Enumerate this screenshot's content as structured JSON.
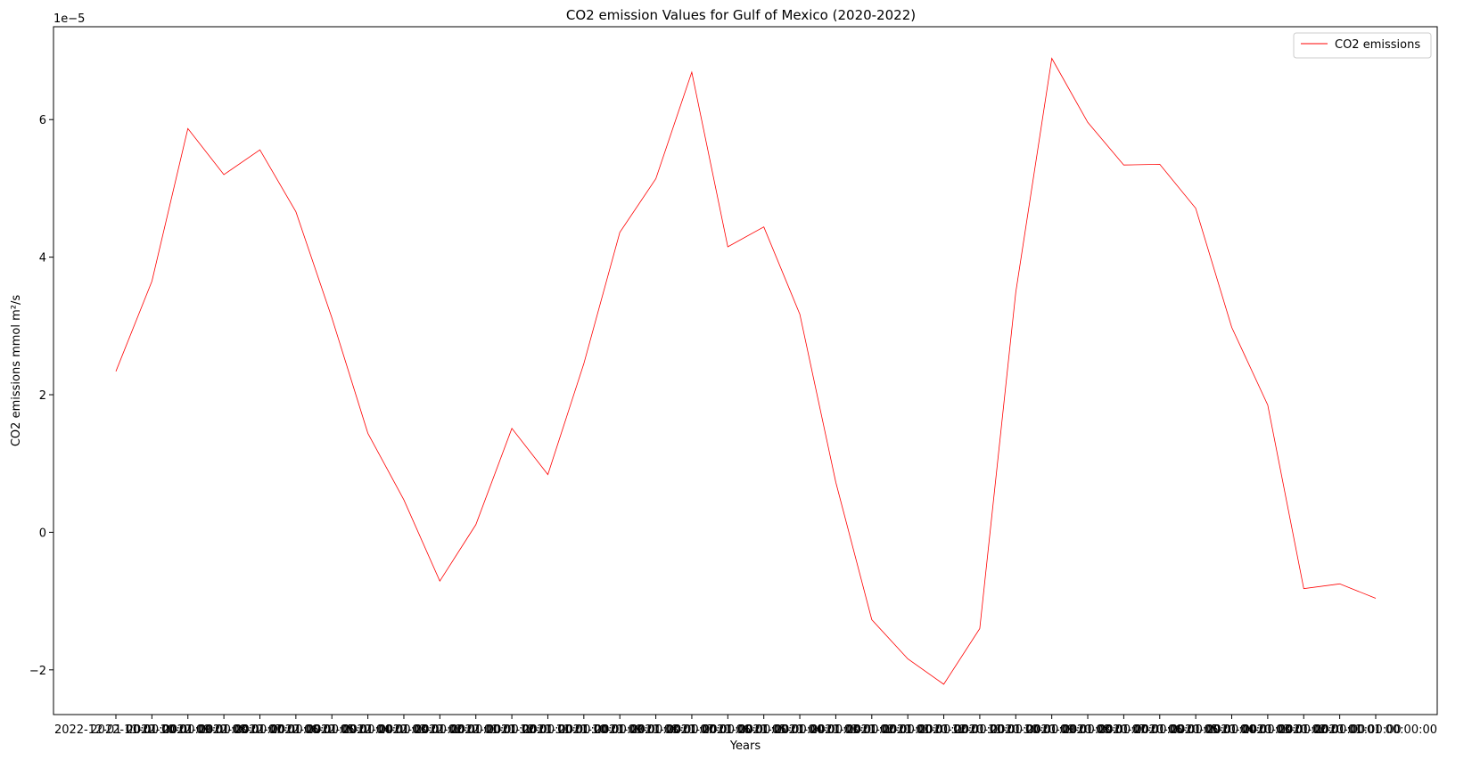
{
  "chart_data": {
    "type": "line",
    "title": "CO2 emission Values for Gulf of Mexico (2020-2022)",
    "xlabel": "Years",
    "ylabel": "CO2 emissions mmol m²/s",
    "y_offset_label": "1e−5",
    "ylim": [
      -2.65,
      7.35
    ],
    "y_ticks": [
      -2,
      0,
      2,
      4,
      6
    ],
    "y_tick_labels": [
      "−2",
      "0",
      "2",
      "4",
      "6"
    ],
    "x_tick_labels": [
      "2022-12-01 00:00:00",
      "2022-11-01 00:00:00",
      "2022-10-01 00:00:00",
      "2022-09-01 00:00:00",
      "2022-08-01 00:00:00",
      "2022-07-01 00:00:00",
      "2022-06-01 00:00:00",
      "2022-05-01 00:00:00",
      "2022-04-01 00:00:00",
      "2022-03-01 00:00:00",
      "2022-02-01 00:00:00",
      "2022-01-01 00:00:00",
      "2021-12-01 00:00:00",
      "2021-11-01 00:00:00",
      "2021-10-01 00:00:00",
      "2021-09-01 00:00:00",
      "2021-08-01 00:00:00",
      "2021-07-01 00:00:00",
      "2021-06-01 00:00:00",
      "2021-05-01 00:00:00",
      "2021-04-01 00:00:00",
      "2021-03-01 00:00:00",
      "2021-02-01 00:00:00",
      "2021-01-01 00:00:00",
      "2020-12-01 00:00:00",
      "2020-11-01 00:00:00",
      "2020-10-01 00:00:00",
      "2020-09-01 00:00:00",
      "2020-08-01 00:00:00",
      "2020-07-01 00:00:00",
      "2020-06-01 00:00:00",
      "2020-05-01 00:00:00",
      "2020-04-01 00:00:00",
      "2020-03-01 00:00:00",
      "2020-02-01 00:00:00",
      "2020-01-01 00:00:00"
    ],
    "series": [
      {
        "name": "CO2 emissions",
        "color": "#ff0000",
        "values": [
          2.34,
          3.65,
          5.87,
          5.2,
          5.56,
          4.66,
          3.12,
          1.44,
          0.47,
          -0.71,
          0.11,
          1.51,
          0.84,
          2.45,
          4.36,
          5.14,
          6.69,
          4.15,
          4.44,
          3.17,
          0.73,
          -1.27,
          -1.84,
          -2.21,
          -1.4,
          3.49,
          6.89,
          5.96,
          5.34,
          5.35,
          4.71,
          2.98,
          1.85,
          -0.82,
          -0.75,
          -0.96
        ]
      }
    ],
    "legend_position": "top-right",
    "grid": false
  }
}
